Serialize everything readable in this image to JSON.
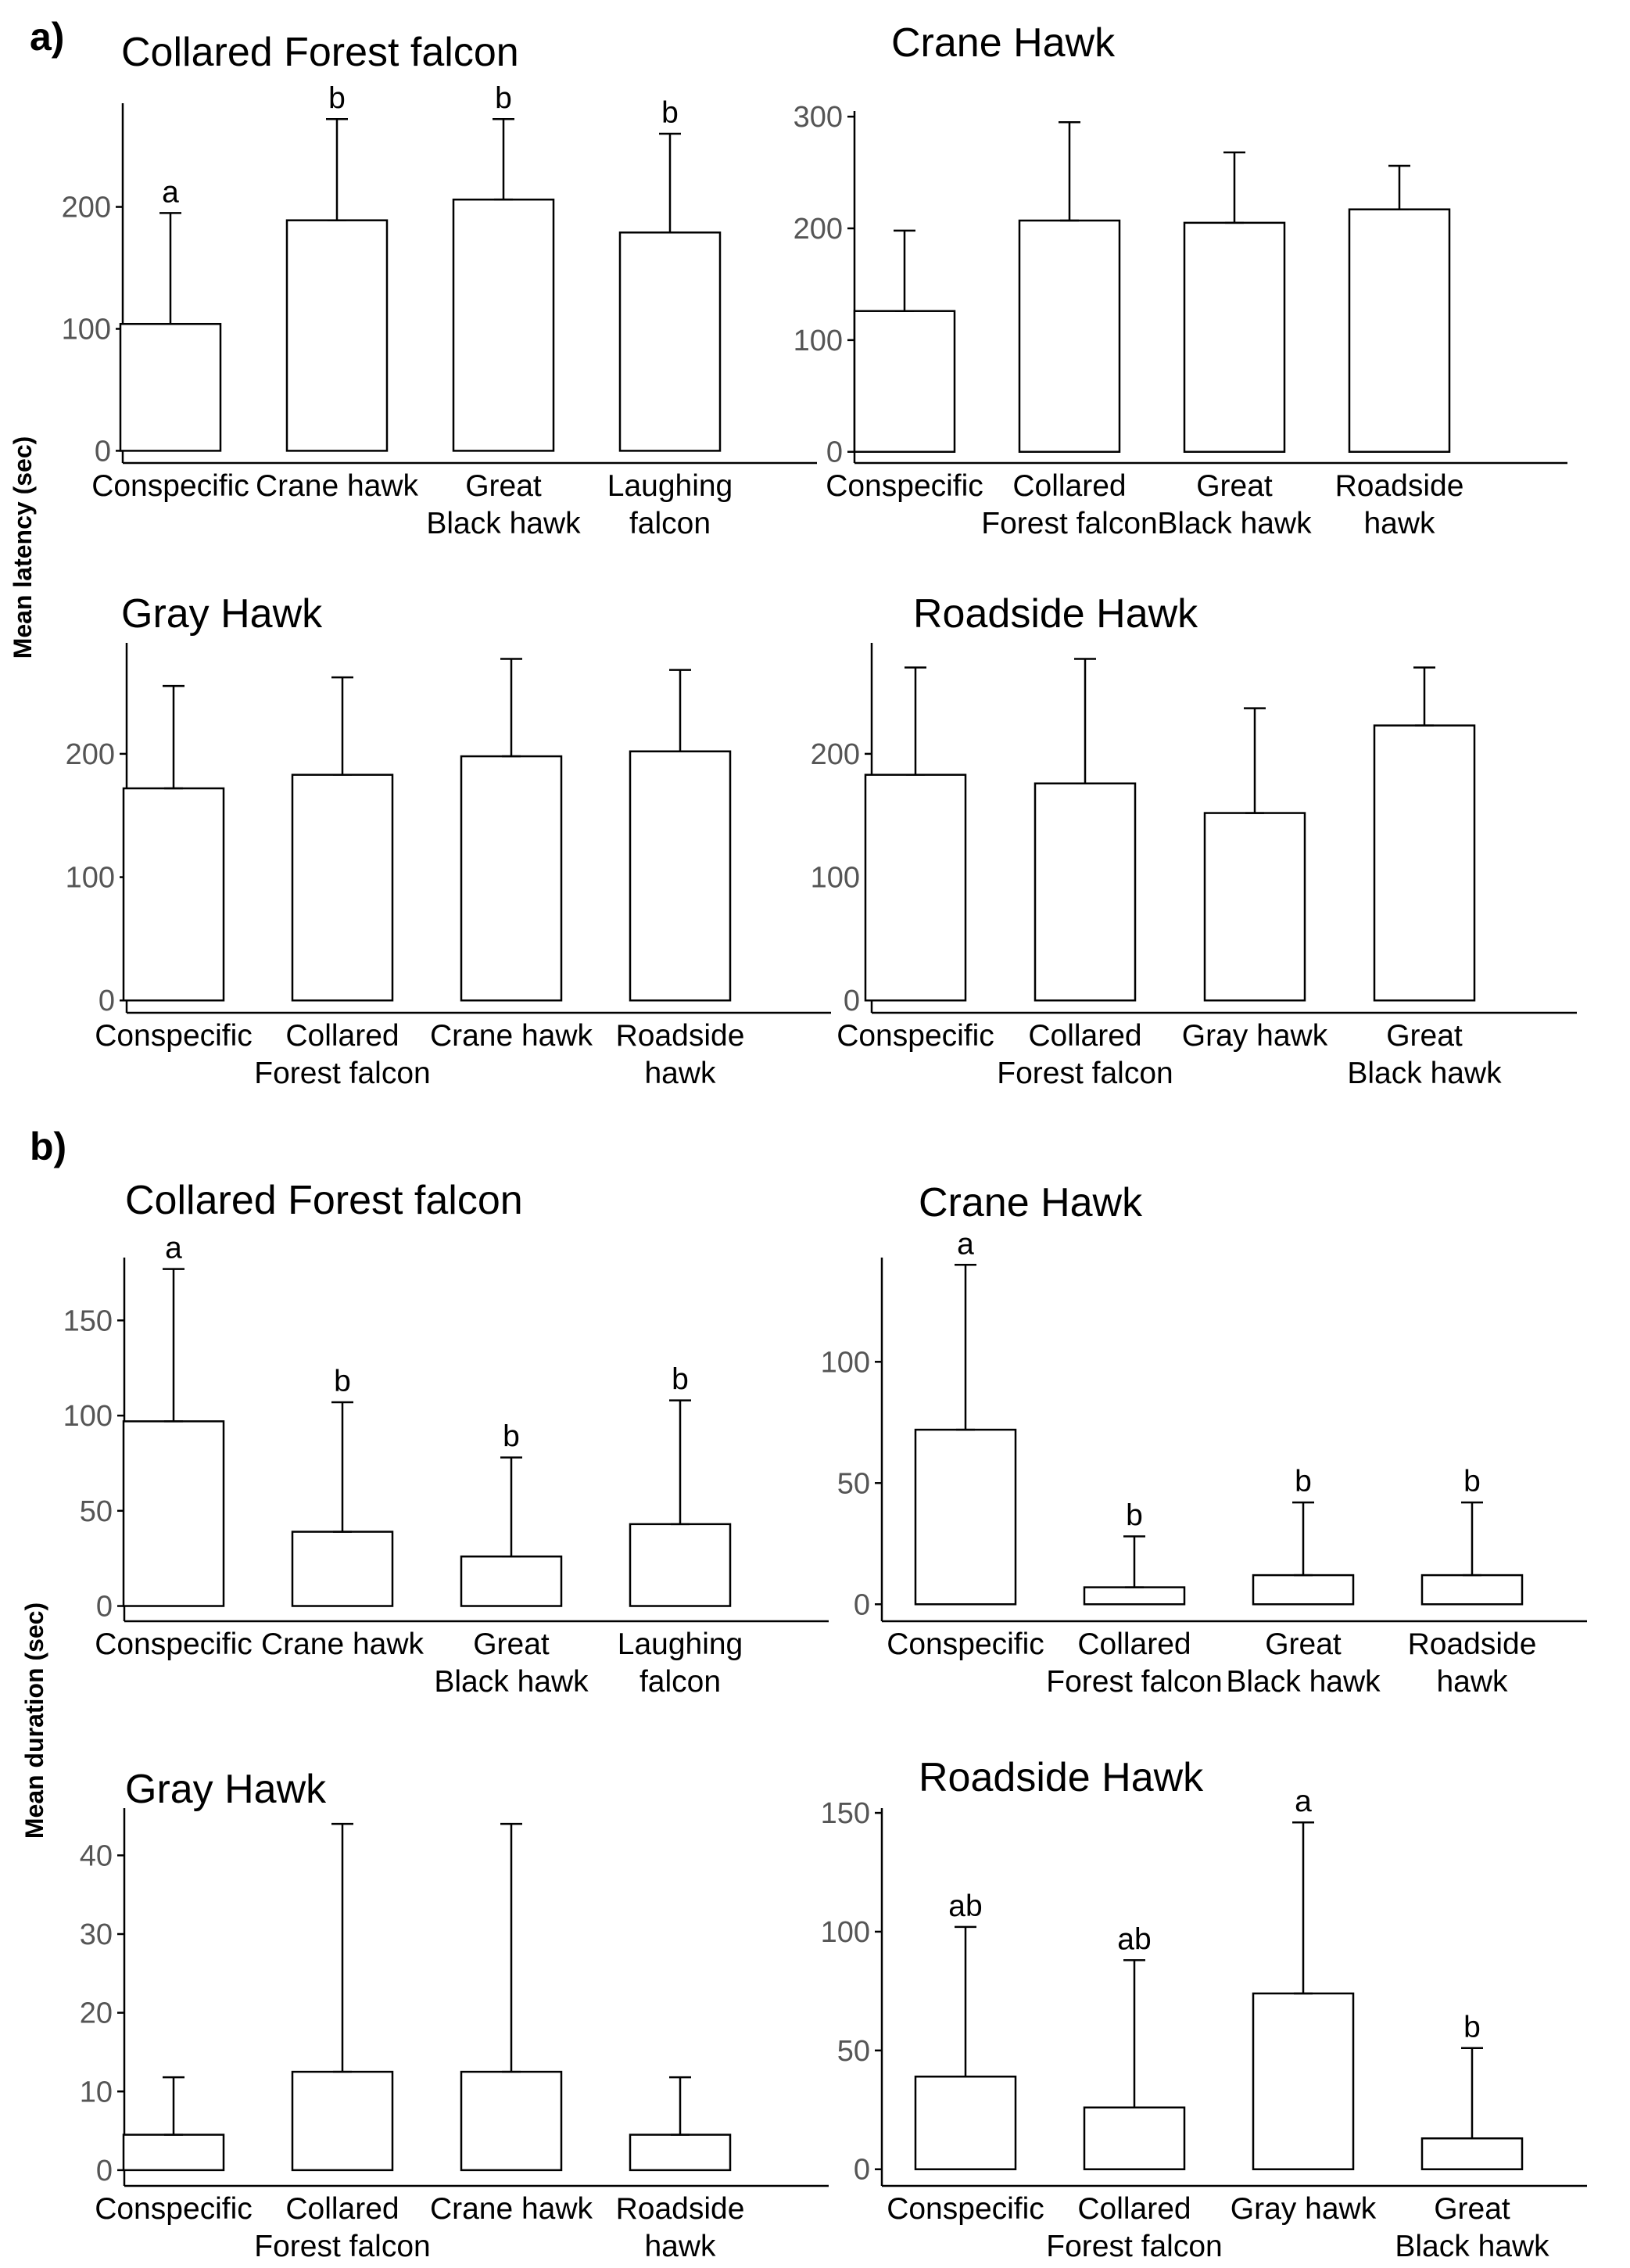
{
  "panel_labels": {
    "a": "a)",
    "b": "b)"
  },
  "y_titles": {
    "latency": "Mean latency (sec)",
    "duration": "Mean duration (sec)"
  },
  "chart_data": [
    {
      "type": "bar",
      "section": "a",
      "title": "Collared Forest falcon",
      "ylabel": "Mean latency (sec)",
      "ylim": [
        -10,
        285
      ],
      "yticks": [
        0,
        100,
        200
      ],
      "categories": [
        [
          "Conspecific"
        ],
        [
          "Crane hawk"
        ],
        [
          "Great",
          "Black hawk"
        ],
        [
          "Laughing",
          "falcon"
        ]
      ],
      "values": [
        104,
        189,
        206,
        179
      ],
      "error_upper": [
        195,
        272,
        272,
        260
      ],
      "significance": [
        "a",
        "b",
        "b",
        "b"
      ]
    },
    {
      "type": "bar",
      "section": "a",
      "title": "Crane Hawk",
      "ylabel": "Mean latency (sec)",
      "ylim": [
        -10,
        305
      ],
      "yticks": [
        0,
        100,
        200,
        300
      ],
      "categories": [
        [
          "Conspecific"
        ],
        [
          "Collared",
          "Forest falcon"
        ],
        [
          "Great",
          "Black hawk"
        ],
        [
          "Roadside",
          "hawk"
        ]
      ],
      "values": [
        126,
        207,
        205,
        217
      ],
      "error_upper": [
        198,
        295,
        268,
        256
      ],
      "significance": [
        "",
        "",
        "",
        ""
      ]
    },
    {
      "type": "bar",
      "section": "a",
      "title": "Gray Hawk",
      "ylabel": "Mean latency (sec)",
      "ylim": [
        -10,
        290
      ],
      "yticks": [
        0,
        100,
        200
      ],
      "categories": [
        [
          "Conspecific"
        ],
        [
          "Collared",
          "Forest falcon"
        ],
        [
          "Crane hawk"
        ],
        [
          "Roadside",
          "hawk"
        ]
      ],
      "values": [
        172,
        183,
        198,
        202
      ],
      "error_upper": [
        255,
        262,
        277,
        268
      ],
      "significance": [
        "",
        "",
        "",
        ""
      ]
    },
    {
      "type": "bar",
      "section": "a",
      "title": "Roadside Hawk",
      "ylabel": "Mean latency (sec)",
      "ylim": [
        -10,
        290
      ],
      "yticks": [
        0,
        100,
        200
      ],
      "categories": [
        [
          "Conspecific"
        ],
        [
          "Collared",
          "Forest falcon"
        ],
        [
          "Gray hawk"
        ],
        [
          "Great",
          "Black hawk"
        ]
      ],
      "values": [
        183,
        176,
        152,
        223
      ],
      "error_upper": [
        270,
        277,
        237,
        270
      ],
      "significance": [
        "",
        "",
        "",
        ""
      ]
    },
    {
      "type": "bar",
      "section": "b",
      "title": "Collared Forest falcon",
      "ylabel": "Mean duration (sec)",
      "ylim": [
        -8,
        183
      ],
      "yticks": [
        0,
        50,
        100,
        150
      ],
      "categories": [
        [
          "Conspecific"
        ],
        [
          "Crane hawk"
        ],
        [
          "Great",
          "Black hawk"
        ],
        [
          "Laughing",
          "falcon"
        ]
      ],
      "values": [
        97,
        39,
        26,
        43
      ],
      "error_upper": [
        177,
        107,
        78,
        108
      ],
      "significance": [
        "a",
        "b",
        "b",
        "b"
      ]
    },
    {
      "type": "bar",
      "section": "b",
      "title": "Crane Hawk",
      "ylabel": "Mean duration (sec)",
      "ylim": [
        -7,
        143
      ],
      "yticks": [
        0,
        50,
        100
      ],
      "categories": [
        [
          "Conspecific"
        ],
        [
          "Collared",
          "Forest falcon"
        ],
        [
          "Great",
          "Black hawk"
        ],
        [
          "Roadside",
          "hawk"
        ]
      ],
      "values": [
        72,
        7,
        12,
        12
      ],
      "error_upper": [
        140,
        28,
        42,
        42
      ],
      "significance": [
        "a",
        "b",
        "b",
        "b"
      ]
    },
    {
      "type": "bar",
      "section": "b",
      "title": "Gray Hawk",
      "ylabel": "Mean duration (sec)",
      "ylim": [
        -2,
        46
      ],
      "yticks": [
        0,
        10,
        20,
        30,
        40
      ],
      "categories": [
        [
          "Conspecific"
        ],
        [
          "Collared",
          "Forest falcon"
        ],
        [
          "Crane hawk"
        ],
        [
          "Roadside",
          "hawk"
        ]
      ],
      "values": [
        4.5,
        12.5,
        12.5,
        4.5
      ],
      "error_upper": [
        11.8,
        44,
        44,
        11.8
      ],
      "significance": [
        "",
        "",
        "",
        ""
      ]
    },
    {
      "type": "bar",
      "section": "b",
      "title": "Roadside Hawk",
      "ylabel": "Mean duration (sec)",
      "ylim": [
        -7,
        152
      ],
      "yticks": [
        0,
        50,
        100,
        150
      ],
      "categories": [
        [
          "Conspecific"
        ],
        [
          "Collared",
          "Forest falcon"
        ],
        [
          "Gray hawk"
        ],
        [
          "Great",
          "Black hawk"
        ]
      ],
      "values": [
        39,
        26,
        74,
        13
      ],
      "error_upper": [
        102,
        88,
        146,
        51
      ],
      "significance": [
        "ab",
        "ab",
        "a",
        "b"
      ]
    }
  ]
}
